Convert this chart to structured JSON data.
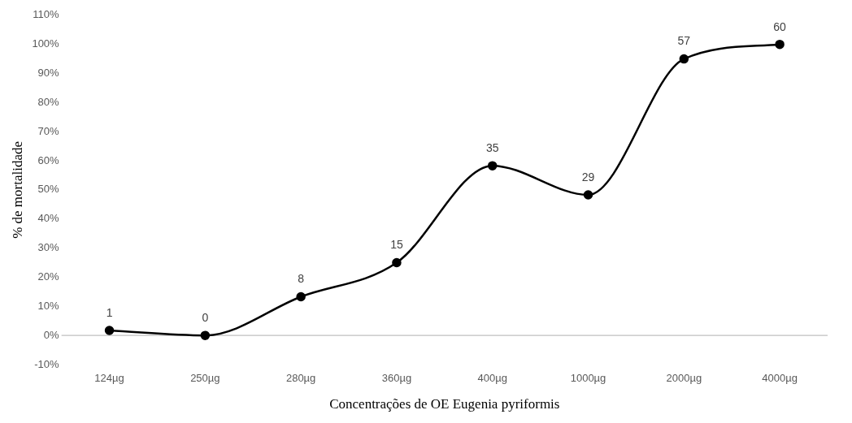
{
  "chart_data": {
    "type": "line",
    "xlabel": "Concentrações de OE Eugenia pyriformis",
    "ylabel": "% de mortalidade",
    "categories": [
      "124µg",
      "250µg",
      "280µg",
      "360µg",
      "400µg",
      "1000µg",
      "2000µg",
      "4000µg"
    ],
    "series": [
      {
        "color": "#000000",
        "values": [
          1.7,
          0,
          13.3,
          25,
          58.3,
          48.3,
          95,
          100
        ]
      }
    ],
    "annotations": [
      {
        "text": "1",
        "x": "124µg",
        "y": 1.7
      },
      {
        "text": "0",
        "x": "250µg",
        "y": 0
      },
      {
        "text": "8",
        "x": "280µg",
        "y": 13.3
      },
      {
        "text": "15",
        "x": "360µg",
        "y": 25
      },
      {
        "text": "35",
        "x": "400µg",
        "y": 58.3
      },
      {
        "text": "29",
        "x": "1000µg",
        "y": 48.3
      },
      {
        "text": "57",
        "x": "2000µg",
        "y": 95
      },
      {
        "text": "60",
        "x": "4000µg",
        "y": 100
      }
    ],
    "ylim": [
      -10,
      110
    ],
    "yticks": [
      {
        "value": -10,
        "label": "-10%"
      },
      {
        "value": 0,
        "label": "0%"
      },
      {
        "value": 10,
        "label": "10%"
      },
      {
        "value": 20,
        "label": "20%"
      },
      {
        "value": 30,
        "label": "30%"
      },
      {
        "value": 40,
        "label": "40%"
      },
      {
        "value": 50,
        "label": "50%"
      },
      {
        "value": 60,
        "label": "60%"
      },
      {
        "value": 70,
        "label": "70%"
      },
      {
        "value": 80,
        "label": "80%"
      },
      {
        "value": 90,
        "label": "90%"
      },
      {
        "value": 100,
        "label": "100%"
      },
      {
        "value": 110,
        "label": "110%"
      }
    ],
    "ref_lines": [
      {
        "axis": "y",
        "value": 0,
        "color": "#bfbfbf"
      }
    ],
    "grid": false,
    "legend": false,
    "marker": "circle",
    "line_style": "solid"
  }
}
